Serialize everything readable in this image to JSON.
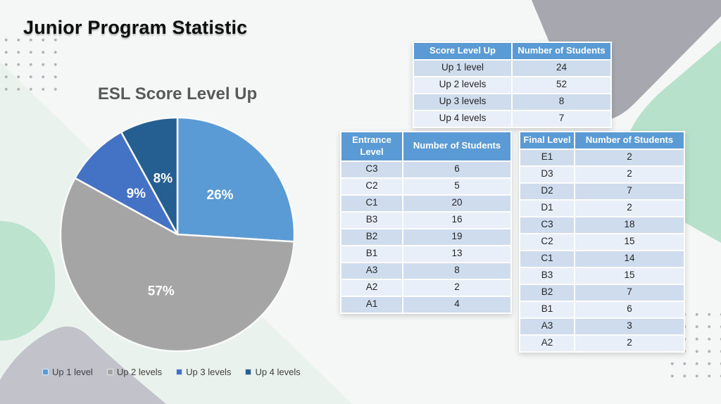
{
  "title": "Junior Program Statistic",
  "colors": {
    "background": "#F5F6F6",
    "accent_blue": "#5B9BD5",
    "table_header_bg": "#5B9BD5",
    "table_row_dark": "#CEDCEE",
    "table_row_light": "#E9EFF8",
    "chart_title_text": "#595959",
    "legend_text": "#404040",
    "decor_gray": "#A7A8AF",
    "decor_green": "#B7E1CB",
    "decor_mint": "#BBE3CE",
    "decor_gray_bottom": "#C2C2CB"
  },
  "chart_data": [
    {
      "type": "pie",
      "title": "ESL Score Level Up",
      "categories": [
        "Up 1 level",
        "Up 2 levels",
        "Up 3 levels",
        "Up 4 levels"
      ],
      "values": [
        26,
        57,
        9,
        8
      ],
      "labels": [
        "26%",
        "57%",
        "9%",
        "8%"
      ],
      "colors": [
        "#5B9BD5",
        "#A5A5A5",
        "#4472C4",
        "#255E91"
      ],
      "legend_position": "bottom",
      "start_angle": "top",
      "direction": "clockwise"
    },
    {
      "type": "table",
      "name": "score-level-up",
      "columns": [
        "Score Level Up",
        "Number of Students"
      ],
      "rows": [
        [
          "Up 1 level",
          "24"
        ],
        [
          "Up 2 levels",
          "52"
        ],
        [
          "Up 3 levels",
          "8"
        ],
        [
          "Up 4 levels",
          "7"
        ]
      ]
    },
    {
      "type": "table",
      "name": "entrance-level",
      "columns": [
        "Entrance Level",
        "Number of Students"
      ],
      "rows": [
        [
          "C3",
          "6"
        ],
        [
          "C2",
          "5"
        ],
        [
          "C1",
          "20"
        ],
        [
          "B3",
          "16"
        ],
        [
          "B2",
          "19"
        ],
        [
          "B1",
          "13"
        ],
        [
          "A3",
          "8"
        ],
        [
          "A2",
          "2"
        ],
        [
          "A1",
          "4"
        ]
      ]
    },
    {
      "type": "table",
      "name": "final-level",
      "columns": [
        "Final Level",
        "Number of Students"
      ],
      "rows": [
        [
          "E1",
          "2"
        ],
        [
          "D3",
          "2"
        ],
        [
          "D2",
          "7"
        ],
        [
          "D1",
          "2"
        ],
        [
          "C3",
          "18"
        ],
        [
          "C2",
          "15"
        ],
        [
          "C1",
          "14"
        ],
        [
          "B3",
          "15"
        ],
        [
          "B2",
          "7"
        ],
        [
          "B1",
          "6"
        ],
        [
          "A3",
          "3"
        ],
        [
          "A2",
          "2"
        ]
      ]
    }
  ]
}
